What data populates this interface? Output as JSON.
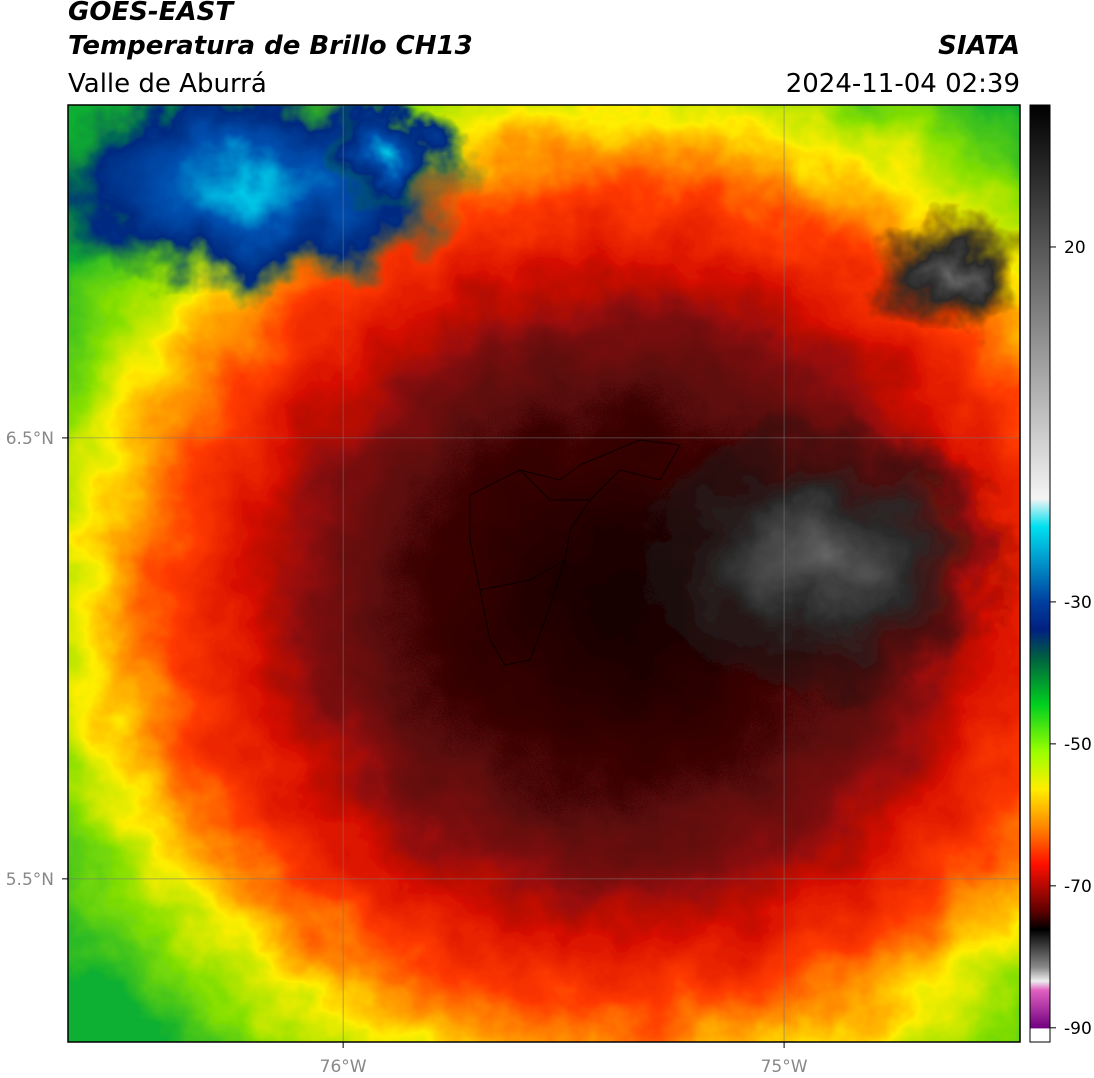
{
  "header": {
    "title": "GOES-EAST",
    "subtitle": "Temperatura de Brillo CH13",
    "region": "Valle de Aburrá",
    "source": "SIATA",
    "datetime": "2024-11-04 02:39"
  },
  "map": {
    "xlim": [
      -76.624,
      -74.465
    ],
    "ylim": [
      5.13,
      7.255
    ],
    "xticks": [
      {
        "value": -76,
        "label": "76°W"
      },
      {
        "value": -75,
        "label": "75°W"
      }
    ],
    "yticks": [
      {
        "value": 5.5,
        "label": "5.5°N"
      },
      {
        "value": 6.5,
        "label": "6.5°N"
      }
    ],
    "grid": true
  },
  "colorbar": {
    "clim": [
      -92,
      40
    ],
    "ticks": [
      20,
      -30,
      -50,
      -70,
      -90
    ]
  }
}
